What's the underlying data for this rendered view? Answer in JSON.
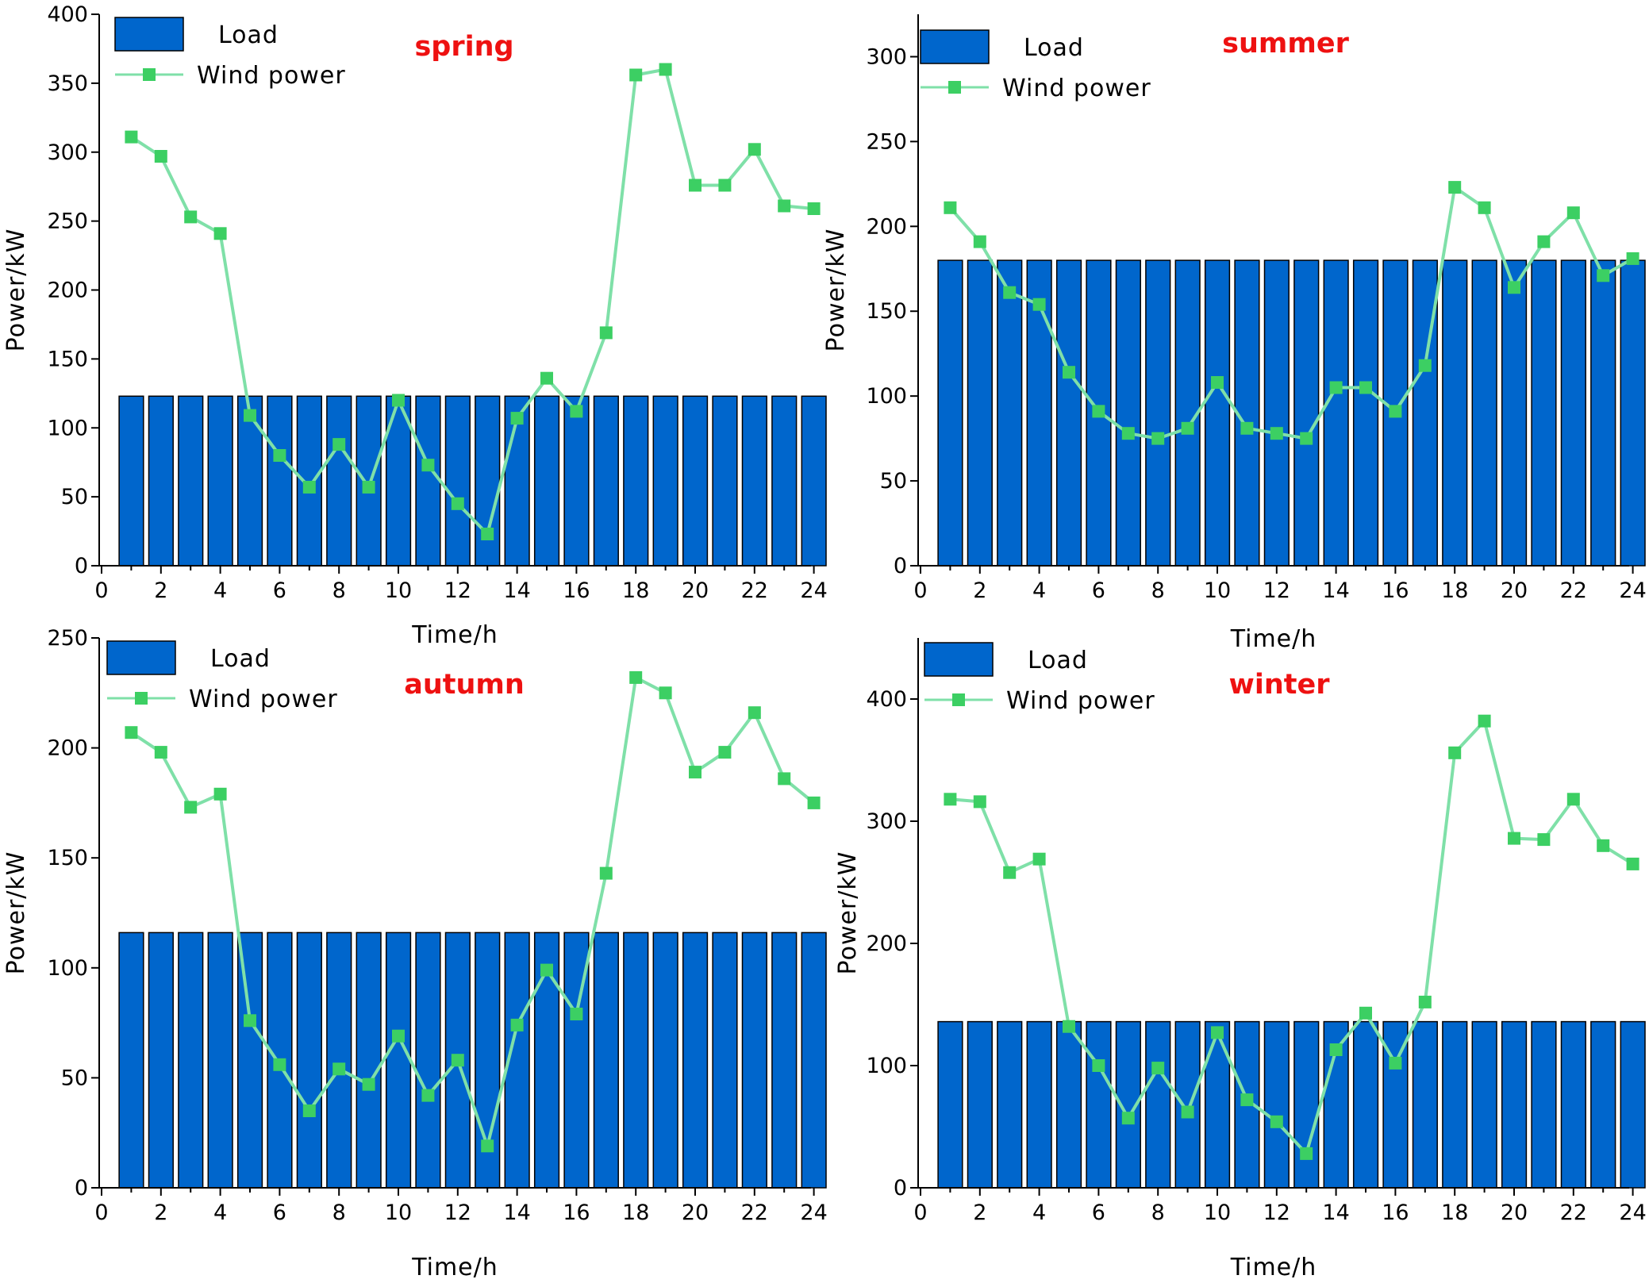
{
  "colors": {
    "load_bar": "#0066cc",
    "bar_edge": "#000000",
    "wind_line": "#7fe0a8",
    "wind_marker": "#3ccf63",
    "season_title": "#ee1111"
  },
  "chart_data": [
    {
      "type": "bar",
      "title": "spring",
      "xlabel": "Time/h",
      "ylabel": "Power/kW",
      "xlim": [
        0,
        24
      ],
      "ylim": [
        0,
        400
      ],
      "xticks": [
        0,
        2,
        4,
        6,
        8,
        10,
        12,
        14,
        16,
        18,
        20,
        22,
        24
      ],
      "yticks": [
        0,
        50,
        100,
        150,
        200,
        250,
        300,
        350,
        400
      ],
      "x": [
        1,
        2,
        3,
        4,
        5,
        6,
        7,
        8,
        9,
        10,
        11,
        12,
        13,
        14,
        15,
        16,
        17,
        18,
        19,
        20,
        21,
        22,
        23,
        24
      ],
      "legend_position": "top-left",
      "series": [
        {
          "name": "Load",
          "kind": "bar",
          "values": [
            123,
            123,
            123,
            123,
            123,
            123,
            123,
            123,
            123,
            123,
            123,
            123,
            123,
            123,
            123,
            123,
            123,
            123,
            123,
            123,
            123,
            123,
            123,
            123
          ]
        },
        {
          "name": "Wind power",
          "kind": "line",
          "values": [
            311,
            297,
            253,
            241,
            109,
            80,
            57,
            88,
            57,
            120,
            73,
            45,
            23,
            107,
            136,
            112,
            169,
            356,
            360,
            276,
            276,
            302,
            261,
            259
          ]
        }
      ]
    },
    {
      "type": "bar",
      "title": "summer",
      "xlabel": "Time/h",
      "ylabel": "Power/kW",
      "xlim": [
        0,
        24
      ],
      "ylim": [
        0,
        325
      ],
      "xticks": [
        0,
        2,
        4,
        6,
        8,
        10,
        12,
        14,
        16,
        18,
        20,
        22,
        24
      ],
      "yticks": [
        0,
        50,
        100,
        150,
        200,
        250,
        300
      ],
      "x": [
        1,
        2,
        3,
        4,
        5,
        6,
        7,
        8,
        9,
        10,
        11,
        12,
        13,
        14,
        15,
        16,
        17,
        18,
        19,
        20,
        21,
        22,
        23,
        24
      ],
      "legend_position": "top-left",
      "series": [
        {
          "name": "Load",
          "kind": "bar",
          "values": [
            180,
            180,
            180,
            180,
            180,
            180,
            180,
            180,
            180,
            180,
            180,
            180,
            180,
            180,
            180,
            180,
            180,
            180,
            180,
            180,
            180,
            180,
            180,
            180
          ]
        },
        {
          "name": "Wind power",
          "kind": "line",
          "values": [
            211,
            191,
            161,
            154,
            114,
            91,
            78,
            75,
            81,
            108,
            81,
            78,
            75,
            105,
            105,
            91,
            118,
            223,
            211,
            164,
            191,
            208,
            171,
            181
          ]
        }
      ]
    },
    {
      "type": "bar",
      "title": "autumn",
      "xlabel": "Time/h",
      "ylabel": "Power/kW",
      "xlim": [
        0,
        24
      ],
      "ylim": [
        0,
        250
      ],
      "xticks": [
        0,
        2,
        4,
        6,
        8,
        10,
        12,
        14,
        16,
        18,
        20,
        22,
        24
      ],
      "yticks": [
        0,
        50,
        100,
        150,
        200,
        250
      ],
      "x": [
        1,
        2,
        3,
        4,
        5,
        6,
        7,
        8,
        9,
        10,
        11,
        12,
        13,
        14,
        15,
        16,
        17,
        18,
        19,
        20,
        21,
        22,
        23,
        24
      ],
      "legend_position": "top-left",
      "series": [
        {
          "name": "Load",
          "kind": "bar",
          "values": [
            116,
            116,
            116,
            116,
            116,
            116,
            116,
            116,
            116,
            116,
            116,
            116,
            116,
            116,
            116,
            116,
            116,
            116,
            116,
            116,
            116,
            116,
            116,
            116
          ]
        },
        {
          "name": "Wind power",
          "kind": "line",
          "values": [
            207,
            198,
            173,
            179,
            76,
            56,
            35,
            54,
            47,
            69,
            42,
            58,
            19,
            74,
            99,
            79,
            143,
            232,
            225,
            189,
            198,
            216,
            186,
            175
          ]
        }
      ]
    },
    {
      "type": "bar",
      "title": "winter",
      "xlabel": "Time/h",
      "ylabel": "Power/kW",
      "xlim": [
        0,
        24
      ],
      "ylim": [
        0,
        450
      ],
      "xticks": [
        0,
        2,
        4,
        6,
        8,
        10,
        12,
        14,
        16,
        18,
        20,
        22,
        24
      ],
      "yticks": [
        0,
        100,
        200,
        300,
        400
      ],
      "x": [
        1,
        2,
        3,
        4,
        5,
        6,
        7,
        8,
        9,
        10,
        11,
        12,
        13,
        14,
        15,
        16,
        17,
        18,
        19,
        20,
        21,
        22,
        23,
        24
      ],
      "legend_position": "top-left",
      "series": [
        {
          "name": "Load",
          "kind": "bar",
          "values": [
            136,
            136,
            136,
            136,
            136,
            136,
            136,
            136,
            136,
            136,
            136,
            136,
            136,
            136,
            136,
            136,
            136,
            136,
            136,
            136,
            136,
            136,
            136,
            136
          ]
        },
        {
          "name": "Wind power",
          "kind": "line",
          "values": [
            318,
            316,
            258,
            269,
            132,
            100,
            57,
            98,
            62,
            127,
            72,
            54,
            28,
            113,
            143,
            102,
            152,
            356,
            382,
            286,
            285,
            318,
            280,
            265
          ]
        }
      ]
    }
  ]
}
